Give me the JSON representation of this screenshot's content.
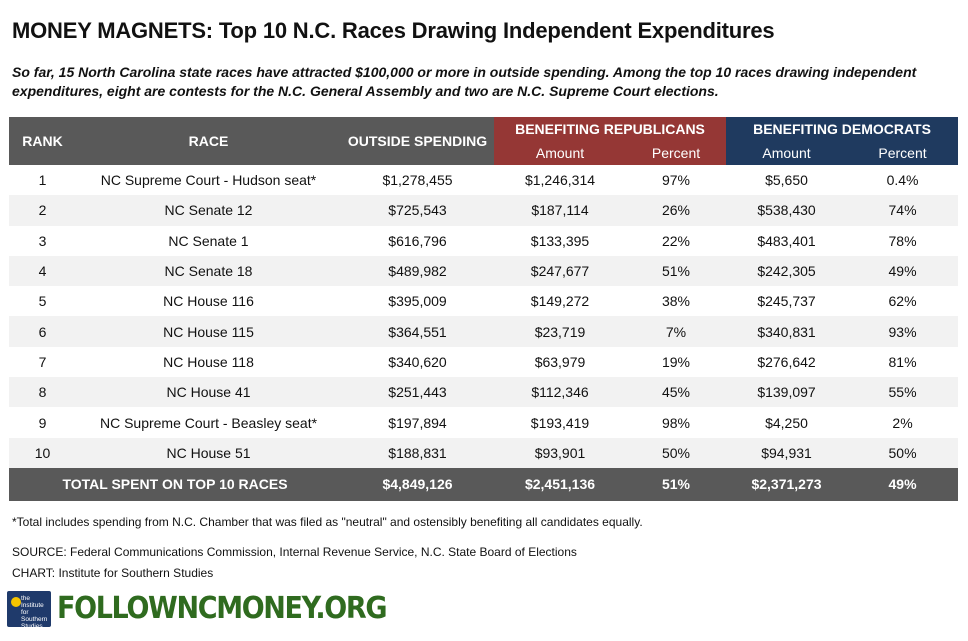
{
  "title": "MONEY MAGNETS: Top 10 N.C. Races Drawing Independent Expenditures",
  "subtitle": "So far, 15 North Carolina state races have attracted $100,000 or more in outside spending. Among the top 10 races drawing independent expenditures, eight are contests for the N.C. General Assembly and two are N.C. Supreme Court elections.",
  "headers": {
    "rank": "RANK",
    "race": "RACE",
    "outside_spending": "OUTSIDE SPENDING",
    "benefiting_republicans": "BENEFITING REPUBLICANS",
    "benefiting_democrats": "BENEFITING DEMOCRATS",
    "amount": "Amount",
    "percent": "Percent"
  },
  "colors": {
    "header_gray": "#595959",
    "republican_red": "#953735",
    "democrat_blue": "#1f3a5f",
    "row_stripe": "#f2f2f2",
    "brand_green": "#2f6b1f"
  },
  "rows": [
    {
      "rank": "1",
      "race": "NC Supreme Court - Hudson seat*",
      "outside": "$1,278,455",
      "rep_amount": "$1,246,314",
      "rep_percent": "97%",
      "dem_amount": "$5,650",
      "dem_percent": "0.4%"
    },
    {
      "rank": "2",
      "race": "NC Senate 12",
      "outside": "$725,543",
      "rep_amount": "$187,114",
      "rep_percent": "26%",
      "dem_amount": "$538,430",
      "dem_percent": "74%"
    },
    {
      "rank": "3",
      "race": "NC Senate 1",
      "outside": "$616,796",
      "rep_amount": "$133,395",
      "rep_percent": "22%",
      "dem_amount": "$483,401",
      "dem_percent": "78%"
    },
    {
      "rank": "4",
      "race": "NC Senate 18",
      "outside": "$489,982",
      "rep_amount": "$247,677",
      "rep_percent": "51%",
      "dem_amount": "$242,305",
      "dem_percent": "49%"
    },
    {
      "rank": "5",
      "race": "NC House 116",
      "outside": "$395,009",
      "rep_amount": "$149,272",
      "rep_percent": "38%",
      "dem_amount": "$245,737",
      "dem_percent": "62%"
    },
    {
      "rank": "6",
      "race": "NC House 115",
      "outside": "$364,551",
      "rep_amount": "$23,719",
      "rep_percent": "7%",
      "dem_amount": "$340,831",
      "dem_percent": "93%"
    },
    {
      "rank": "7",
      "race": "NC House 118",
      "outside": "$340,620",
      "rep_amount": "$63,979",
      "rep_percent": "19%",
      "dem_amount": "$276,642",
      "dem_percent": "81%"
    },
    {
      "rank": "8",
      "race": "NC House 41",
      "outside": "$251,443",
      "rep_amount": "$112,346",
      "rep_percent": "45%",
      "dem_amount": "$139,097",
      "dem_percent": "55%"
    },
    {
      "rank": "9",
      "race": "NC Supreme Court - Beasley seat*",
      "outside": "$197,894",
      "rep_amount": "$193,419",
      "rep_percent": "98%",
      "dem_amount": "$4,250",
      "dem_percent": "2%"
    },
    {
      "rank": "10",
      "race": "NC House 51",
      "outside": "$188,831",
      "rep_amount": "$93,901",
      "rep_percent": "50%",
      "dem_amount": "$94,931",
      "dem_percent": "50%"
    }
  ],
  "total": {
    "label": "TOTAL SPENT ON TOP 10 RACES",
    "outside": "$4,849,126",
    "rep_amount": "$2,451,136",
    "rep_percent": "51%",
    "dem_amount": "$2,371,273",
    "dem_percent": "49%"
  },
  "footnote": "*Total includes spending from N.C. Chamber that was filed as \"neutral\" and ostensibly benefiting all candidates equally.",
  "source": "SOURCE: Federal Communications Commission, Internal Revenue Service, N.C. State Board of Elections",
  "credit": "CHART: Institute for Southern Studies",
  "logo": {
    "icon": "institute-for-southern-studies-logo",
    "text": "the Institute for Southern Studies"
  },
  "brand": "FOLLOWNCMONEY.ORG"
}
